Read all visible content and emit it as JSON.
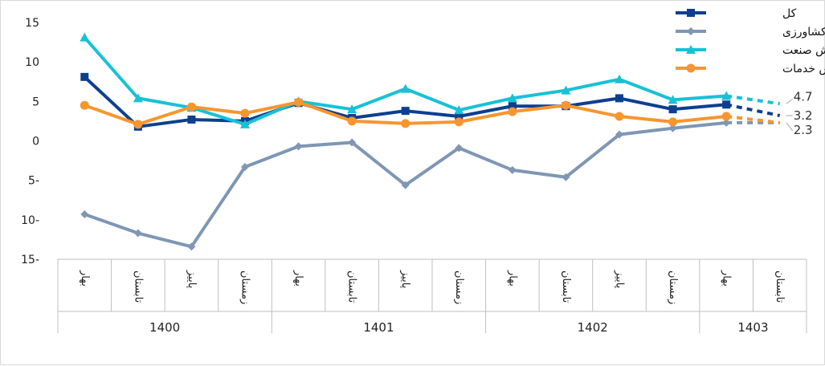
{
  "chart_data": {
    "type": "line",
    "y_tick_labels": [
      "15",
      "10",
      "5",
      "0",
      "5-",
      "10-",
      "15-"
    ],
    "y_ticks": [
      15,
      10,
      5,
      0,
      -5,
      -10,
      -15
    ],
    "ylim": [
      -15,
      15
    ],
    "categories": [
      "بهار",
      "تابستان",
      "پاییز",
      "زمستان",
      "بهار",
      "تابستان",
      "پاییز",
      "زمستان",
      "بهار",
      "تابستان",
      "پاییز",
      "زمستان",
      "بهار",
      "تابستان"
    ],
    "years": [
      {
        "label": "1400",
        "span": 4
      },
      {
        "label": "1401",
        "span": 4
      },
      {
        "label": "1402",
        "span": 4
      },
      {
        "label": "1403",
        "span": 2
      }
    ],
    "series": [
      {
        "name": "کل",
        "color": "#0d3f8f",
        "marker": "square",
        "values": [
          8.1,
          1.8,
          2.7,
          2.5,
          4.8,
          2.9,
          3.8,
          3.1,
          4.4,
          4.4,
          5.4,
          4.0,
          4.6,
          3.2
        ],
        "end_label": "3.2"
      },
      {
        "name": "بخش کشاورزی",
        "color": "#7f96b4",
        "marker": "diamond",
        "values": [
          -9.3,
          -11.7,
          -13.4,
          -3.3,
          -0.7,
          -0.2,
          -5.6,
          -0.9,
          -3.7,
          -4.6,
          0.8,
          1.6,
          2.3,
          2.3
        ],
        "end_label": null
      },
      {
        "name": "بخش صنعت",
        "color": "#18c1d6",
        "marker": "triangle",
        "values": [
          13.1,
          5.4,
          4.2,
          2.1,
          5.0,
          4.0,
          6.6,
          3.9,
          5.4,
          6.4,
          7.8,
          5.2,
          5.7,
          4.7
        ],
        "end_label": "4.7"
      },
      {
        "name": "بخش خدمات",
        "color": "#f7962e",
        "marker": "circle",
        "values": [
          4.5,
          2.1,
          4.3,
          3.5,
          4.9,
          2.5,
          2.2,
          2.4,
          3.7,
          4.5,
          3.1,
          2.4,
          3.1,
          2.3
        ],
        "end_label": "2.3"
      }
    ],
    "dashed_from_index": 12,
    "legend_position": "top-right",
    "grid": false,
    "title": "",
    "xlabel": "",
    "ylabel": ""
  }
}
